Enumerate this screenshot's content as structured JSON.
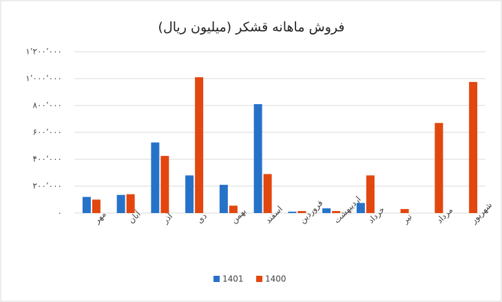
{
  "chart_data": {
    "type": "bar",
    "title": "فروش ماهانه قشکر (میلیون ریال)",
    "categories": [
      "مهر",
      "آبان",
      "آذر",
      "دی",
      "بهمن",
      "اسفند",
      "فروردین",
      "اردیبهشت",
      "خرداد",
      "تیر",
      "مرداد",
      "شهریور"
    ],
    "series": [
      {
        "name": "1401",
        "color": "#2672c9",
        "values": [
          120000,
          135000,
          525000,
          280000,
          210000,
          810000,
          10000,
          35000,
          75000,
          null,
          null,
          null
        ]
      },
      {
        "name": "1400",
        "color": "#e2470f",
        "values": [
          100000,
          140000,
          425000,
          1010000,
          55000,
          290000,
          15000,
          15000,
          280000,
          30000,
          670000,
          975000
        ]
      }
    ],
    "ylim": [
      0,
      1200000
    ],
    "yticks": [
      {
        "value": 0,
        "label": "۰"
      },
      {
        "value": 200000,
        "label": "۲۰۰٬۰۰۰"
      },
      {
        "value": 400000,
        "label": "۴۰۰٬۰۰۰"
      },
      {
        "value": 600000,
        "label": "۶۰۰٬۰۰۰"
      },
      {
        "value": 800000,
        "label": "۸۰۰٬۰۰۰"
      },
      {
        "value": 1000000,
        "label": "۱٬۰۰۰٬۰۰۰"
      },
      {
        "value": 1200000,
        "label": "۱٬۲۰۰٬۰۰۰"
      }
    ],
    "grid": true,
    "legend": "bottom"
  }
}
